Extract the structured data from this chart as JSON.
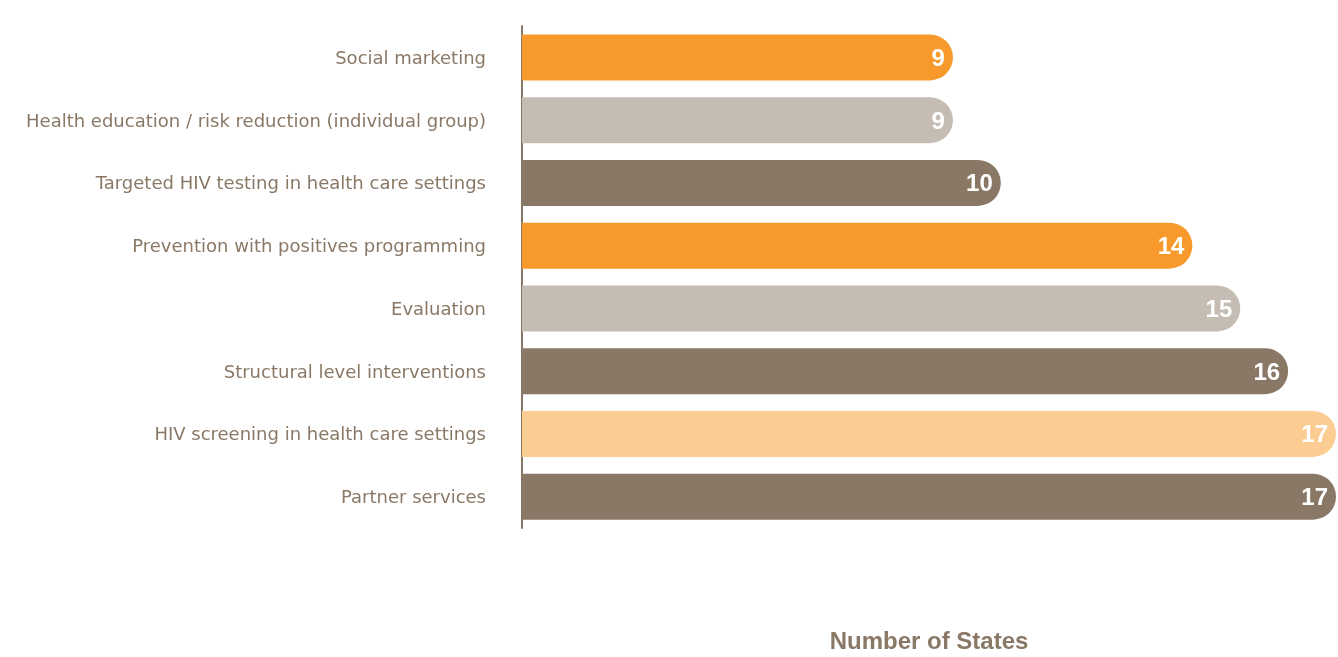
{
  "chart_data": {
    "type": "bar",
    "orientation": "horizontal",
    "xlabel": "Number of States",
    "categories": [
      "Social marketing",
      "Health education / risk reduction (individual group)",
      "Targeted HIV testing in health care settings",
      "Prevention with positives programming",
      "Evaluation",
      "Structural level interventions",
      "HIV screening in health care settings",
      "Partner services"
    ],
    "values": [
      9,
      9,
      10,
      14,
      15,
      16,
      17,
      17
    ],
    "colors": [
      "#f7992b",
      "#c5bdb3",
      "#8a7866",
      "#f7992b",
      "#c5bdb3",
      "#8a7866",
      "#fccd92",
      "#8a7866"
    ],
    "data_labels": true
  }
}
